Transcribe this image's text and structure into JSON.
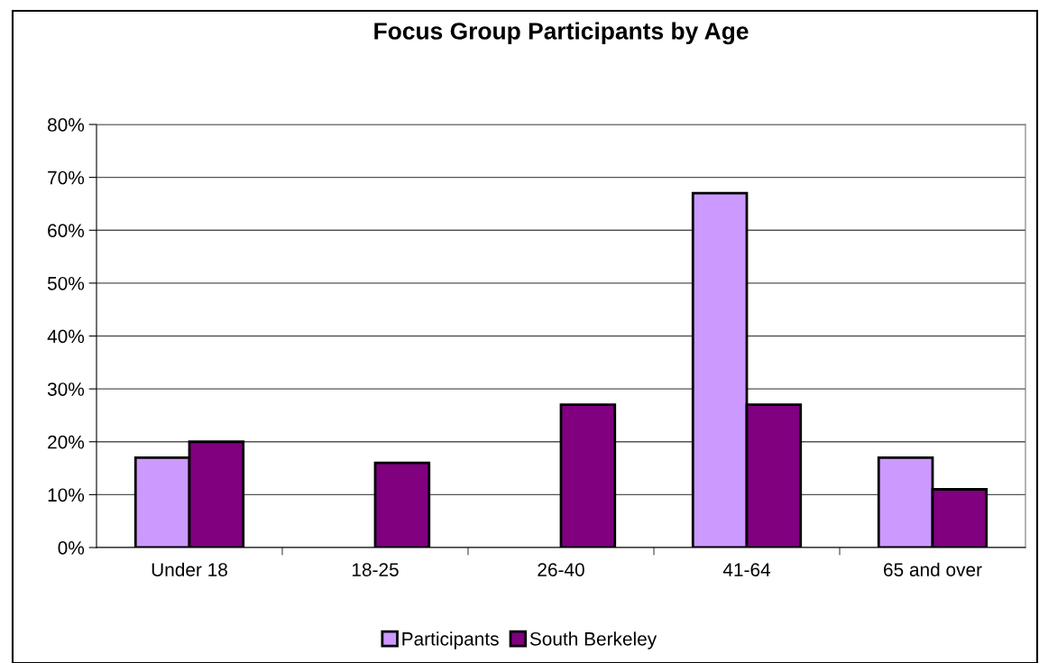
{
  "chart_data": {
    "type": "bar",
    "title": "Focus Group Participants by Age",
    "categories": [
      "Under 18",
      "18-25",
      "26-40",
      "41-64",
      "65 and over"
    ],
    "series": [
      {
        "name": "Participants",
        "color": "#cc99ff",
        "values": [
          17,
          null,
          null,
          67,
          17
        ]
      },
      {
        "name": "South Berkeley",
        "color": "#800080",
        "values": [
          20,
          16,
          27,
          27,
          11
        ]
      }
    ],
    "ylim": [
      0,
      80
    ],
    "yticks": [
      {
        "value": 0,
        "label": "0%"
      },
      {
        "value": 10,
        "label": "10%"
      },
      {
        "value": 20,
        "label": "20%"
      },
      {
        "value": 30,
        "label": "30%"
      },
      {
        "value": 40,
        "label": "40%"
      },
      {
        "value": 50,
        "label": "50%"
      },
      {
        "value": 60,
        "label": "60%"
      },
      {
        "value": 70,
        "label": "70%"
      },
      {
        "value": 80,
        "label": "80%"
      }
    ],
    "grid": "y",
    "legend": "bottom"
  }
}
